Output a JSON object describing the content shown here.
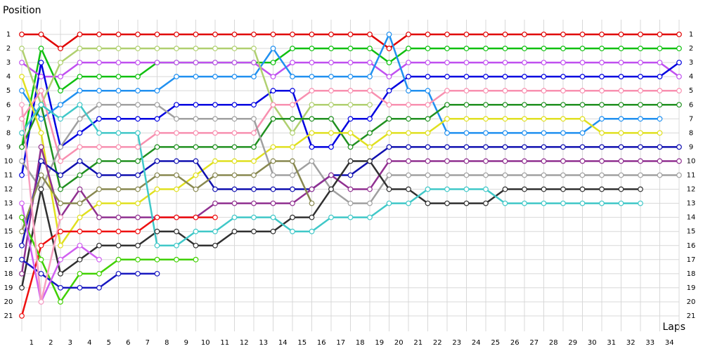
{
  "chart_data": {
    "type": "line",
    "y_label": "Position",
    "x_label": "Laps",
    "x": [
      0,
      1,
      2,
      3,
      4,
      5,
      6,
      7,
      8,
      9,
      10,
      11,
      12,
      13,
      14,
      15,
      16,
      17,
      18,
      19,
      20,
      21,
      22,
      23,
      24,
      25,
      26,
      27,
      28,
      29,
      30,
      31,
      32,
      33,
      34
    ],
    "categories": [
      "1",
      "2",
      "3",
      "4",
      "5",
      "6",
      "7",
      "8",
      "9",
      "10",
      "11",
      "12",
      "13",
      "14",
      "15",
      "16",
      "17",
      "18",
      "19",
      "20",
      "21",
      "22",
      "23",
      "24",
      "25",
      "26",
      "27",
      "28",
      "29",
      "30",
      "31",
      "32",
      "33",
      "34"
    ],
    "xlim": [
      0,
      34
    ],
    "ylim": [
      1,
      21
    ],
    "y_inverted": true,
    "yticks": [
      1,
      2,
      3,
      4,
      5,
      6,
      7,
      8,
      9,
      10,
      11,
      12,
      13,
      14,
      15,
      16,
      17,
      18,
      19,
      20,
      21
    ],
    "grid": true,
    "series": [
      {
        "color": "#e00000",
        "values": [
          1,
          1,
          2,
          1,
          1,
          1,
          1,
          1,
          1,
          1,
          1,
          1,
          1,
          1,
          1,
          1,
          1,
          1,
          1,
          2,
          1,
          1,
          1,
          1,
          1,
          1,
          1,
          1,
          1,
          1,
          1,
          1,
          1,
          1,
          1
        ]
      },
      {
        "color": "#10c010",
        "values": [
          9,
          2,
          5,
          4,
          4,
          4,
          4,
          3,
          3,
          3,
          3,
          3,
          3,
          3,
          2,
          2,
          2,
          2,
          2,
          3,
          2,
          2,
          2,
          2,
          2,
          2,
          2,
          2,
          2,
          2,
          2,
          2,
          2,
          2,
          2
        ]
      },
      {
        "color": "#c050f0",
        "values": [
          3,
          4,
          4,
          3,
          3,
          3,
          3,
          3,
          3,
          3,
          3,
          3,
          3,
          4,
          3,
          3,
          3,
          3,
          3,
          4,
          3,
          3,
          3,
          3,
          3,
          3,
          3,
          3,
          3,
          3,
          3,
          3,
          3,
          3,
          4
        ]
      },
      {
        "color": "#0000e0",
        "values": [
          11,
          3,
          9,
          8,
          7,
          7,
          7,
          7,
          6,
          6,
          6,
          6,
          6,
          5,
          5,
          9,
          9,
          7,
          7,
          5,
          4,
          4,
          4,
          4,
          4,
          4,
          4,
          4,
          4,
          4,
          4,
          4,
          4,
          4,
          3
        ]
      },
      {
        "color": "#2090f0",
        "values": [
          5,
          7,
          6,
          5,
          5,
          5,
          5,
          5,
          4,
          4,
          4,
          4,
          4,
          2,
          4,
          4,
          4,
          4,
          4,
          1,
          5,
          5,
          8,
          8,
          8,
          8,
          8,
          8,
          8,
          8,
          7,
          7,
          7,
          7,
          null
        ]
      },
      {
        "color": "#b0d070",
        "values": [
          2,
          6,
          3,
          2,
          2,
          2,
          2,
          2,
          2,
          2,
          2,
          2,
          2,
          6,
          8,
          6,
          6,
          6,
          6,
          null,
          null,
          null,
          null,
          null,
          null,
          null,
          null,
          null,
          null,
          null,
          null,
          null,
          null,
          null,
          null
        ]
      },
      {
        "color": "#f890b0",
        "values": [
          7,
          5,
          10,
          9,
          9,
          9,
          9,
          8,
          8,
          8,
          8,
          8,
          8,
          6,
          6,
          5,
          5,
          5,
          5,
          6,
          6,
          6,
          5,
          5,
          5,
          5,
          5,
          5,
          5,
          5,
          5,
          5,
          5,
          5,
          5
        ]
      },
      {
        "color": "#209020",
        "values": [
          9,
          6,
          12,
          11,
          10,
          10,
          10,
          9,
          9,
          9,
          9,
          9,
          9,
          7,
          7,
          7,
          7,
          9,
          8,
          7,
          7,
          7,
          6,
          6,
          6,
          6,
          6,
          6,
          6,
          6,
          6,
          6,
          6,
          6,
          6
        ]
      },
      {
        "color": "#e0e020",
        "values": [
          4,
          8,
          16,
          14,
          13,
          13,
          13,
          12,
          12,
          11,
          10,
          10,
          10,
          9,
          9,
          8,
          8,
          8,
          9,
          8,
          8,
          8,
          7,
          7,
          7,
          7,
          7,
          7,
          7,
          7,
          8,
          8,
          8,
          8,
          null
        ]
      },
      {
        "color": "#a0a0a0",
        "values": [
          10,
          12,
          9,
          7,
          6,
          6,
          6,
          6,
          7,
          7,
          7,
          7,
          7,
          11,
          11,
          10,
          12,
          13,
          13,
          11,
          11,
          11,
          11,
          11,
          11,
          11,
          11,
          11,
          11,
          11,
          11,
          11,
          11,
          11,
          11
        ]
      },
      {
        "color": "#1010b0",
        "values": [
          16,
          10,
          11,
          10,
          11,
          11,
          11,
          10,
          10,
          10,
          12,
          12,
          12,
          12,
          12,
          12,
          11,
          11,
          10,
          9,
          9,
          9,
          9,
          9,
          9,
          9,
          9,
          9,
          9,
          9,
          9,
          9,
          9,
          9,
          9
        ]
      },
      {
        "color": "#903090",
        "values": [
          18,
          9,
          14,
          12,
          14,
          14,
          14,
          14,
          14,
          14,
          13,
          13,
          13,
          13,
          13,
          12,
          11,
          12,
          12,
          10,
          10,
          10,
          10,
          10,
          10,
          10,
          10,
          10,
          10,
          10,
          10,
          10,
          10,
          10,
          10
        ]
      },
      {
        "color": "#888850",
        "values": [
          15,
          11,
          13,
          13,
          12,
          12,
          12,
          11,
          11,
          12,
          11,
          11,
          11,
          10,
          10,
          13,
          null,
          null,
          null,
          null,
          null,
          null,
          null,
          null,
          null,
          null,
          null,
          null,
          null,
          null,
          null,
          null,
          null,
          null,
          null
        ]
      },
      {
        "color": "#303030",
        "values": [
          19,
          12,
          18,
          17,
          16,
          16,
          16,
          15,
          15,
          16,
          16,
          15,
          15,
          15,
          14,
          14,
          12,
          10,
          10,
          12,
          12,
          13,
          13,
          13,
          13,
          12,
          12,
          12,
          12,
          12,
          12,
          12,
          12,
          null,
          null
        ]
      },
      {
        "color": "#40c8c8",
        "values": [
          8,
          6,
          7,
          6,
          8,
          8,
          8,
          16,
          16,
          15,
          15,
          14,
          14,
          14,
          15,
          15,
          14,
          14,
          14,
          13,
          13,
          12,
          12,
          12,
          12,
          13,
          13,
          13,
          13,
          13,
          13,
          13,
          13,
          null,
          null
        ]
      },
      {
        "color": "#ee1010",
        "values": [
          21,
          16,
          15,
          15,
          15,
          15,
          15,
          14,
          14,
          14,
          14,
          null,
          null,
          null,
          null,
          null,
          null,
          null,
          null,
          null,
          null,
          null,
          null,
          null,
          null,
          null,
          null,
          null,
          null,
          null,
          null,
          null,
          null,
          null,
          null
        ]
      },
      {
        "color": "#40d000",
        "values": [
          14,
          17,
          20,
          18,
          18,
          17,
          17,
          17,
          17,
          17,
          null,
          null,
          null,
          null,
          null,
          null,
          null,
          null,
          null,
          null,
          null,
          null,
          null,
          null,
          null,
          null,
          null,
          null,
          null,
          null,
          null,
          null,
          null,
          null,
          null
        ]
      },
      {
        "color": "#1818c0",
        "values": [
          17,
          18,
          19,
          19,
          19,
          18,
          18,
          18,
          null,
          null,
          null,
          null,
          null,
          null,
          null,
          null,
          null,
          null,
          null,
          null,
          null,
          null,
          null,
          null,
          null,
          null,
          null,
          null,
          null,
          null,
          null,
          null,
          null,
          null,
          null
        ]
      },
      {
        "color": "#d060f0",
        "values": [
          13,
          20,
          17,
          16,
          17,
          null,
          null,
          null,
          null,
          null,
          null,
          null,
          null,
          null,
          null,
          null,
          null,
          null,
          null,
          null,
          null,
          null,
          null,
          null,
          null,
          null,
          null,
          null,
          null,
          null,
          null,
          null,
          null,
          null,
          null
        ]
      },
      {
        "color": "#f8a0c0",
        "values": [
          6,
          20,
          14,
          null,
          null,
          null,
          null,
          null,
          null,
          null,
          null,
          null,
          null,
          null,
          null,
          null,
          null,
          null,
          null,
          null,
          null,
          null,
          null,
          null,
          null,
          null,
          null,
          null,
          null,
          null,
          null,
          null,
          null,
          null,
          null
        ]
      }
    ]
  }
}
